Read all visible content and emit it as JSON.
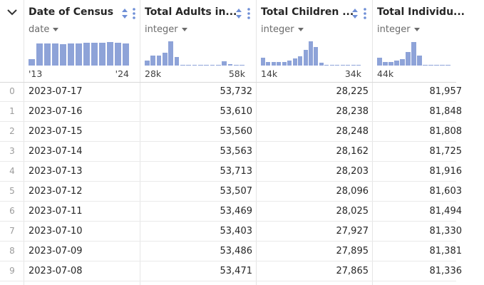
{
  "columns": [
    {
      "name": "Date of Census",
      "type": "date",
      "range_min": "'13",
      "range_max": "'24",
      "hist": [
        0.24,
        0.83,
        0.83,
        0.85,
        0.82,
        0.84,
        0.84,
        0.86,
        0.86,
        0.86,
        0.9,
        0.86,
        0.84
      ]
    },
    {
      "name": "Total Adults in...",
      "type": "integer",
      "range_min": "28k",
      "range_max": "58k",
      "hist": [
        0.2,
        0.38,
        0.38,
        0.48,
        0.92,
        0.33,
        0.04,
        0.04,
        0.04,
        0.04,
        0.04,
        0.04,
        0.04,
        0.16,
        0.06,
        0.04,
        0.04
      ]
    },
    {
      "name": "Total Children ...",
      "type": "integer",
      "range_min": "14k",
      "range_max": "34k",
      "hist": [
        0.3,
        0.14,
        0.14,
        0.14,
        0.14,
        0.2,
        0.28,
        0.34,
        0.6,
        0.92,
        0.7,
        0.12,
        0.04,
        0.04,
        0.04,
        0.04,
        0.04,
        0.04,
        0.04
      ]
    },
    {
      "name": "Total Individu...",
      "type": "integer",
      "range_min": "44k",
      "range_max": "",
      "hist": [
        0.3,
        0.14,
        0.14,
        0.2,
        0.24,
        0.52,
        0.88,
        0.38,
        0.04,
        0.04,
        0.04,
        0.04,
        0.04
      ]
    }
  ],
  "rows": [
    {
      "idx": "0",
      "date": "2023-07-17",
      "adults": "53,732",
      "children": "28,225",
      "individuals": "81,957"
    },
    {
      "idx": "1",
      "date": "2023-07-16",
      "adults": "53,610",
      "children": "28,238",
      "individuals": "81,848"
    },
    {
      "idx": "2",
      "date": "2023-07-15",
      "adults": "53,560",
      "children": "28,248",
      "individuals": "81,808"
    },
    {
      "idx": "3",
      "date": "2023-07-14",
      "adults": "53,563",
      "children": "28,162",
      "individuals": "81,725"
    },
    {
      "idx": "4",
      "date": "2023-07-13",
      "adults": "53,713",
      "children": "28,203",
      "individuals": "81,916"
    },
    {
      "idx": "5",
      "date": "2023-07-12",
      "adults": "53,507",
      "children": "28,096",
      "individuals": "81,603"
    },
    {
      "idx": "6",
      "date": "2023-07-11",
      "adults": "53,469",
      "children": "28,025",
      "individuals": "81,494"
    },
    {
      "idx": "7",
      "date": "2023-07-10",
      "adults": "53,403",
      "children": "27,927",
      "individuals": "81,330"
    },
    {
      "idx": "8",
      "date": "2023-07-09",
      "adults": "53,486",
      "children": "27,895",
      "individuals": "81,381"
    },
    {
      "idx": "9",
      "date": "2023-07-08",
      "adults": "53,471",
      "children": "27,865",
      "individuals": "81,336"
    }
  ],
  "colors": {
    "hist_bar": "#8ea3d8",
    "sort_icon": "#6f8fd6",
    "header_text": "#262626",
    "index_text": "#9b9b9b"
  },
  "icons": {
    "collapse": "chevron-down-icon",
    "sort": "sort-icon",
    "menu": "more-vertical-icon",
    "type": "caret-down-icon"
  }
}
